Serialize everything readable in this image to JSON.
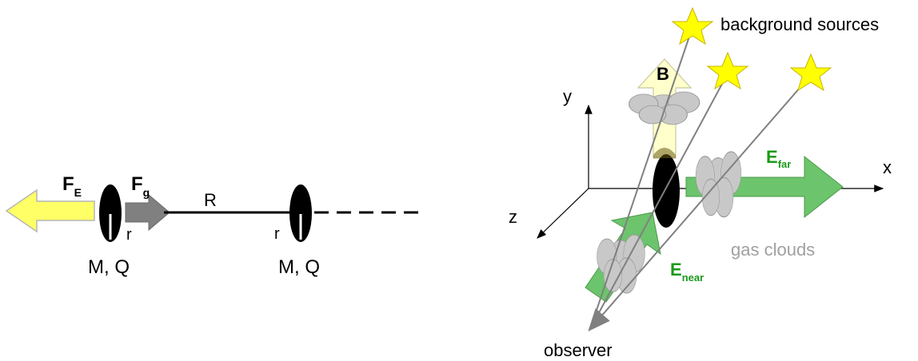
{
  "left_diagram": {
    "force_electric": {
      "main": "F",
      "sub": "E"
    },
    "force_gravity": {
      "main": "F",
      "sub": "g"
    },
    "separation_label": "R",
    "radius_label_left": "r",
    "radius_label_right": "r",
    "mass_charge_left": "M, Q",
    "mass_charge_right": "M, Q",
    "colors": {
      "electric_arrow": "#ffff66",
      "gravity_arrow": "#808080",
      "body": "#000000"
    }
  },
  "right_diagram": {
    "axis_x": "x",
    "axis_y": "y",
    "axis_z": "z",
    "magnetic_field": "B",
    "e_far": {
      "main": "E",
      "sub": "far"
    },
    "e_near": {
      "main": "E",
      "sub": "near"
    },
    "background_sources_label": "background sources",
    "gas_clouds_label": "gas clouds",
    "observer_label": "observer",
    "colors": {
      "field_green": "#1a9a1a",
      "arrow_green": "#6cc46c",
      "star_yellow": "#ffff00",
      "cloud_gray": "#c8c8c8",
      "b_arrow_fill": "#ffffcc",
      "gas_label_gray": "#a0a0a0"
    }
  }
}
